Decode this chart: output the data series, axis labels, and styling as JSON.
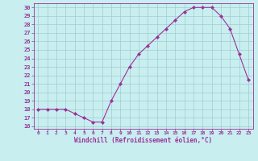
{
  "x": [
    0,
    1,
    2,
    3,
    4,
    5,
    6,
    7,
    8,
    9,
    10,
    11,
    12,
    13,
    14,
    15,
    16,
    17,
    18,
    19,
    20,
    21,
    22,
    23
  ],
  "y": [
    18,
    18,
    18,
    18,
    17.5,
    17,
    16.5,
    16.5,
    19,
    21,
    23,
    24.5,
    25.5,
    26.5,
    27.5,
    28.5,
    29.5,
    30,
    30,
    30,
    29,
    27.5,
    24.5,
    21.5
  ],
  "line_color": "#993399",
  "marker": "D",
  "marker_size": 2.0,
  "bg_color": "#c8eef0",
  "grid_color": "#a0ccd0",
  "xlabel": "Windchill (Refroidissement éolien,°C)",
  "xlabel_color": "#993399",
  "tick_color": "#993399",
  "ylim": [
    15.7,
    30.5
  ],
  "xlim": [
    -0.5,
    23.5
  ],
  "yticks": [
    16,
    17,
    18,
    19,
    20,
    21,
    22,
    23,
    24,
    25,
    26,
    27,
    28,
    29,
    30
  ],
  "xticks": [
    0,
    1,
    2,
    3,
    4,
    5,
    6,
    7,
    8,
    9,
    10,
    11,
    12,
    13,
    14,
    15,
    16,
    17,
    18,
    19,
    20,
    21,
    22,
    23
  ],
  "spine_color": "#993399"
}
